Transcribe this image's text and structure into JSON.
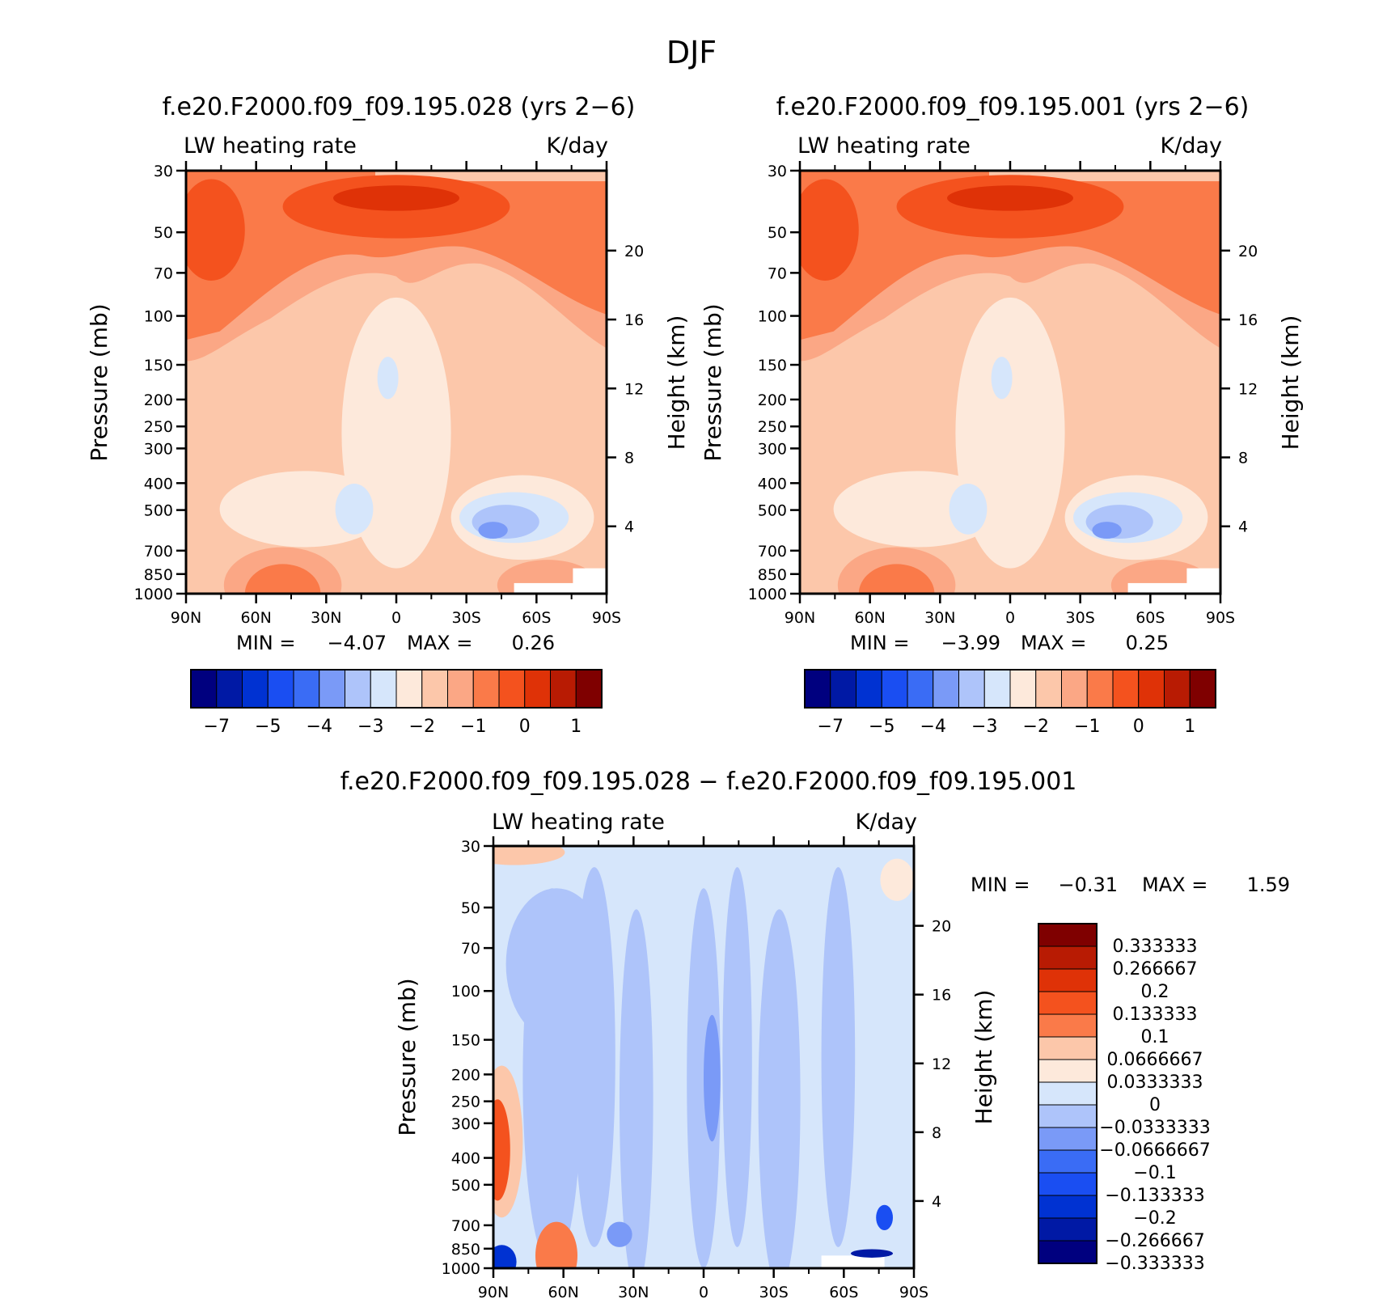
{
  "figure": {
    "title": "DJF"
  },
  "chart_data": [
    {
      "type": "heatmap",
      "title": "f.e20.F2000.f09_f09.195.028 (yrs 2−6)",
      "left_label": "LW heating rate",
      "right_label": "K/day",
      "ylabel": "Pressure (mb)",
      "y2label": "Height (km)",
      "x_ticks": [
        "90N",
        "60N",
        "30N",
        "0",
        "30S",
        "60S",
        "90S"
      ],
      "x_values": [
        90,
        60,
        30,
        0,
        -30,
        -60,
        -90
      ],
      "y_ticks": [
        30,
        50,
        70,
        100,
        150,
        200,
        250,
        300,
        400,
        500,
        700,
        850,
        1000
      ],
      "y2_ticks": [
        20,
        16,
        12,
        8,
        4
      ],
      "min_label": "MIN =",
      "min_value": "−4.07",
      "max_label": "MAX =",
      "max_value": "0.26",
      "colorbar": {
        "orientation": "horizontal",
        "colors": [
          "#00007f",
          "#0019a5",
          "#0032d2",
          "#1a4ef2",
          "#3a6cf5",
          "#7a9af7",
          "#aec4fa",
          "#d6e6fb",
          "#fde9db",
          "#fcc7aa",
          "#fba785",
          "#fa7a49",
          "#f4521e",
          "#df3207",
          "#b81b03",
          "#7f0000"
        ],
        "labels": [
          "−7",
          "−5",
          "−4",
          "−3",
          "−2",
          "−1",
          "0",
          "1"
        ]
      }
    },
    {
      "type": "heatmap",
      "title": "f.e20.F2000.f09_f09.195.001 (yrs 2−6)",
      "left_label": "LW heating rate",
      "right_label": "K/day",
      "ylabel": "Pressure (mb)",
      "y2label": "Height (km)",
      "x_ticks": [
        "90N",
        "60N",
        "30N",
        "0",
        "30S",
        "60S",
        "90S"
      ],
      "x_values": [
        90,
        60,
        30,
        0,
        -30,
        -60,
        -90
      ],
      "y_ticks": [
        30,
        50,
        70,
        100,
        150,
        200,
        250,
        300,
        400,
        500,
        700,
        850,
        1000
      ],
      "y2_ticks": [
        20,
        16,
        12,
        8,
        4
      ],
      "min_label": "MIN =",
      "min_value": "−3.99",
      "max_label": "MAX =",
      "max_value": "0.25",
      "colorbar": {
        "orientation": "horizontal",
        "colors": [
          "#00007f",
          "#0019a5",
          "#0032d2",
          "#1a4ef2",
          "#3a6cf5",
          "#7a9af7",
          "#aec4fa",
          "#d6e6fb",
          "#fde9db",
          "#fcc7aa",
          "#fba785",
          "#fa7a49",
          "#f4521e",
          "#df3207",
          "#b81b03",
          "#7f0000"
        ],
        "labels": [
          "−7",
          "−5",
          "−4",
          "−3",
          "−2",
          "−1",
          "0",
          "1"
        ]
      }
    },
    {
      "type": "heatmap",
      "title": "f.e20.F2000.f09_f09.195.028 − f.e20.F2000.f09_f09.195.001",
      "left_label": "LW heating rate",
      "right_label": "K/day",
      "ylabel": "Pressure (mb)",
      "y2label": "Height (km)",
      "x_ticks": [
        "90N",
        "60N",
        "30N",
        "0",
        "30S",
        "60S",
        "90S"
      ],
      "x_values": [
        90,
        60,
        30,
        0,
        -30,
        -60,
        -90
      ],
      "y_ticks": [
        30,
        50,
        70,
        100,
        150,
        200,
        250,
        300,
        400,
        500,
        700,
        850,
        1000
      ],
      "y2_ticks": [
        20,
        16,
        12,
        8,
        4
      ],
      "min_label": "MIN =",
      "min_value": "−0.31",
      "max_label": "MAX =",
      "max_value": "1.59",
      "colorbar": {
        "orientation": "vertical",
        "colors": [
          "#7f0000",
          "#b81b03",
          "#df3207",
          "#f4521e",
          "#fa7a49",
          "#fcc7aa",
          "#fde9db",
          "#d6e6fb",
          "#aec4fa",
          "#7a9af7",
          "#3a6cf5",
          "#1a4ef2",
          "#0032d2",
          "#0019a5",
          "#00007f"
        ],
        "labels": [
          "0.333333",
          "0.266667",
          "0.2",
          "0.133333",
          "0.1",
          "0.0666667",
          "0.0333333",
          "0",
          "−0.0333333",
          "−0.0666667",
          "−0.1",
          "−0.133333",
          "−0.2",
          "−0.266667",
          "−0.333333"
        ]
      }
    }
  ]
}
